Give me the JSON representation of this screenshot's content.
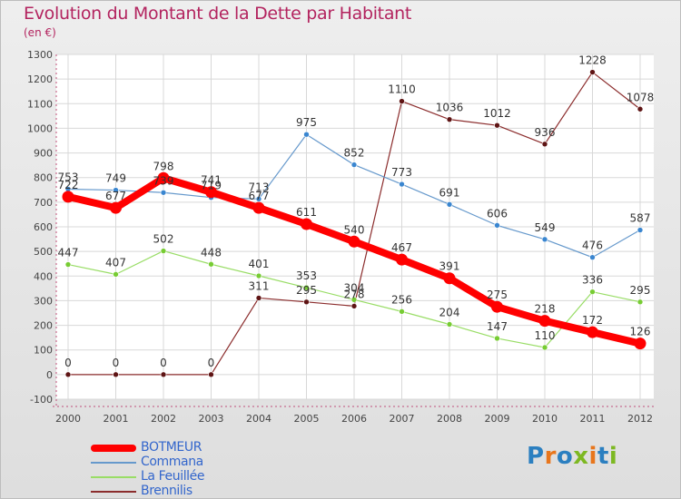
{
  "title": "Evolution du Montant de la Dette par Habitant",
  "subtitle": "(en €)",
  "logo_text": "Proxiti",
  "logo_colors": [
    "#2b7fc0",
    "#e8761c",
    "#2b7fc0",
    "#7db822",
    "#e8761c",
    "#2b7fc0",
    "#7db822"
  ],
  "chart_data": {
    "type": "line",
    "categories": [
      "2000",
      "2001",
      "2002",
      "2003",
      "2004",
      "2005",
      "2006",
      "2007",
      "2008",
      "2009",
      "2010",
      "2011",
      "2012"
    ],
    "ylim": [
      -100,
      1300
    ],
    "yticks": [
      -100,
      0,
      100,
      200,
      300,
      400,
      500,
      600,
      700,
      800,
      900,
      1000,
      1100,
      1200,
      1300
    ],
    "grid": true,
    "legend": "bottom-left",
    "series": [
      {
        "name": "BOTMEUR",
        "color": "#ff0000",
        "marker": "#ff0000",
        "width": 8,
        "values": [
          722,
          677,
          798,
          741,
          677,
          611,
          540,
          467,
          391,
          275,
          218,
          172,
          126
        ],
        "labels": [
          "722",
          "677",
          "798",
          "741",
          "677",
          "611",
          "540",
          "467",
          "391",
          "275",
          "218",
          "172",
          "126"
        ]
      },
      {
        "name": "Commana",
        "color": "#6699cc",
        "marker": "#3a86d0",
        "width": 1.2,
        "values": [
          753,
          749,
          739,
          719,
          713,
          975,
          852,
          773,
          691,
          606,
          549,
          476,
          587
        ],
        "labels": [
          "753",
          "749",
          "739",
          "719",
          "713",
          "975",
          "852",
          "773",
          "691",
          "606",
          "549",
          "476",
          "587"
        ]
      },
      {
        "name": "La Feuillée",
        "color": "#99dd66",
        "marker": "#77cc33",
        "width": 1.2,
        "values": [
          447,
          407,
          502,
          448,
          401,
          353,
          304,
          256,
          204,
          147,
          110,
          336,
          295
        ],
        "labels": [
          "447",
          "407",
          "502",
          "448",
          "401",
          "353",
          "304",
          "256",
          "204",
          "147",
          "110",
          "336",
          "295"
        ]
      },
      {
        "name": "Brennilis",
        "color": "#8b2c2c",
        "marker": "#5e1414",
        "width": 1.2,
        "values": [
          0,
          0,
          0,
          0,
          311,
          295,
          278,
          1110,
          1036,
          1012,
          936,
          1228,
          1078
        ],
        "labels": [
          "0",
          "0",
          "0",
          "0",
          "311",
          "295",
          "278",
          "1110",
          "1036",
          "1012",
          "936",
          "1228",
          "1078"
        ]
      }
    ]
  }
}
